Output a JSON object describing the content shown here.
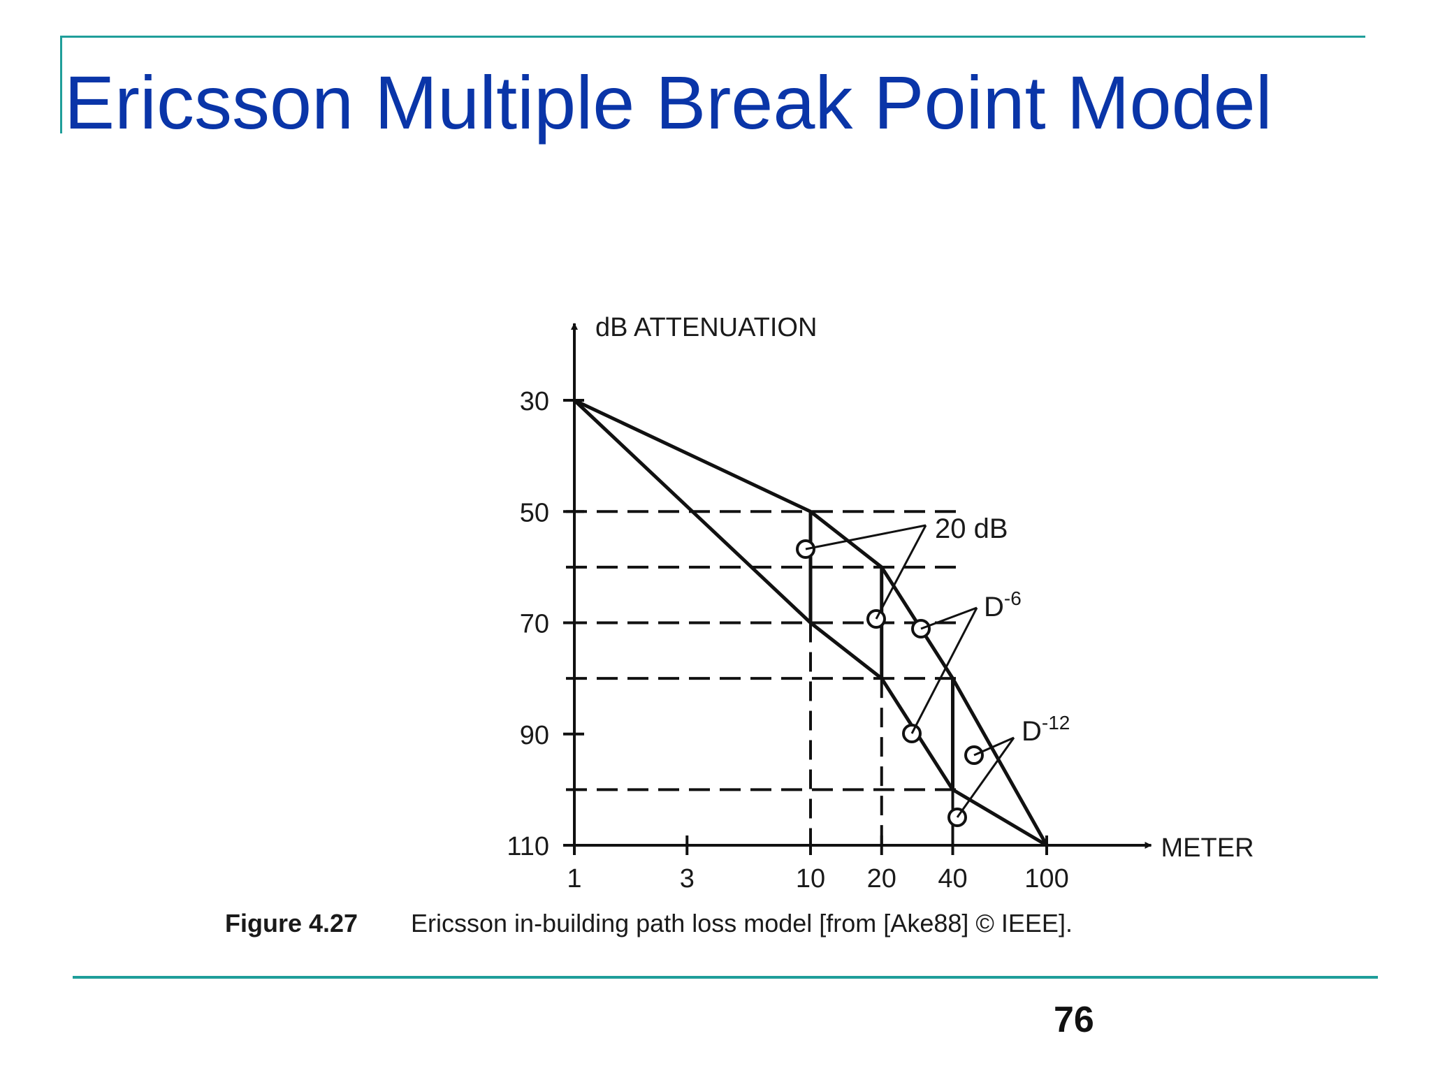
{
  "slide": {
    "title": "Ericsson Multiple Break Point Model",
    "page_number": "76"
  },
  "colors": {
    "title": "#0a35a8",
    "rule": "#1f9e9a",
    "ink": "#111111"
  },
  "chart_data": {
    "type": "line",
    "ylabel": "dB ATTENUATION",
    "xlabel": "METER",
    "x_scale": "log",
    "y_inverted": true,
    "xlim": [
      1,
      150
    ],
    "ylim": [
      30,
      110
    ],
    "x_ticks": [
      1,
      3,
      10,
      20,
      40,
      100
    ],
    "y_ticks": [
      30,
      50,
      70,
      90,
      110
    ],
    "series": [
      {
        "x": [
          1,
          10,
          20,
          40,
          100
        ],
        "y": [
          30,
          50,
          60,
          80,
          110
        ]
      },
      {
        "x": [
          1,
          10,
          20,
          40,
          100
        ],
        "y": [
          30,
          70,
          80,
          100,
          110
        ]
      }
    ],
    "break_verticals": [
      {
        "x": 10,
        "y": [
          50,
          70
        ]
      },
      {
        "x": 20,
        "y": [
          60,
          80
        ]
      },
      {
        "x": 40,
        "y": [
          80,
          100
        ]
      }
    ],
    "reference_levels_y": [
      50,
      60,
      70,
      80,
      100
    ],
    "annotations": [
      {
        "text": "20 dB"
      },
      {
        "text": "D",
        "sup": "-6"
      },
      {
        "text": "D",
        "sup": "-12"
      }
    ],
    "caption": {
      "label": "Figure 4.27",
      "text": "Ericsson in-building path loss model [from [Ake88] © IEEE]."
    }
  }
}
